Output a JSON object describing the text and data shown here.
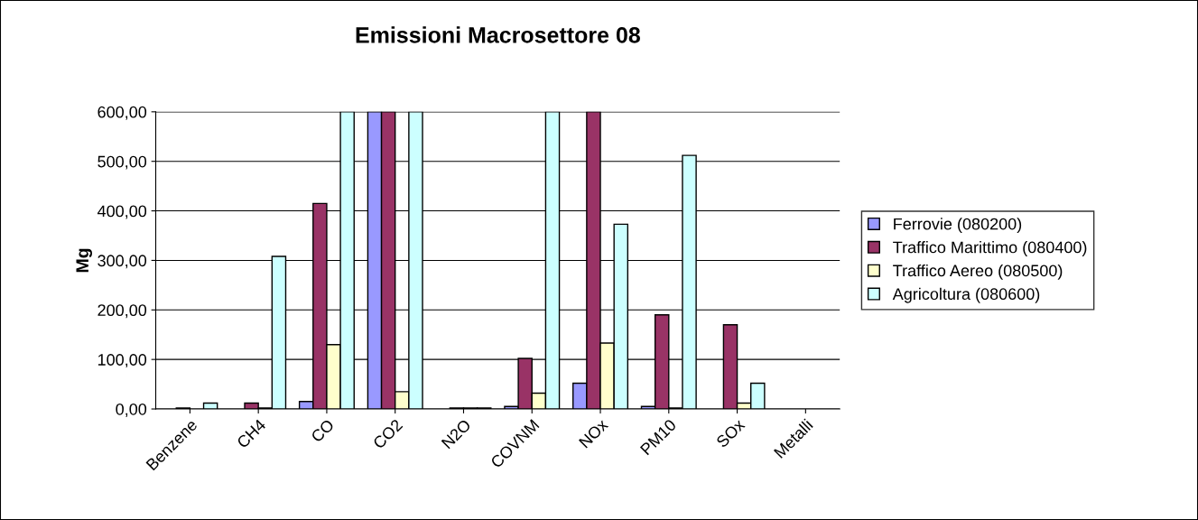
{
  "chart_data": {
    "type": "bar",
    "title": "Emissioni Macrosettore 08",
    "ylabel": "Mg",
    "categories": [
      "Benzene",
      "CH4",
      "CO",
      "CO2",
      "N2O",
      "COVNM",
      "NOx",
      "PM10",
      "SOx",
      "Metalli"
    ],
    "series": [
      {
        "name": "Ferrovie (080200)",
        "color": "#9999ff",
        "values": [
          null,
          null,
          15,
          600,
          null,
          5,
          52,
          5,
          null,
          null
        ]
      },
      {
        "name": "Traffico Marittimo (080400)",
        "color": "#993366",
        "values": [
          2,
          12,
          415,
          600,
          2,
          102,
          600,
          190,
          170,
          null
        ]
      },
      {
        "name": "Traffico Aereo (080500)",
        "color": "#ffffcc",
        "values": [
          null,
          2,
          130,
          35,
          2,
          32,
          133,
          2,
          12,
          null
        ]
      },
      {
        "name": "Agricoltura (080600)",
        "color": "#ccffff",
        "values": [
          12,
          308,
          600,
          600,
          2,
          600,
          373,
          512,
          52,
          null
        ]
      }
    ],
    "ylim": [
      0,
      600
    ],
    "yticks": [
      {
        "value": 0,
        "label": "0,00"
      },
      {
        "value": 100,
        "label": "100,00"
      },
      {
        "value": 200,
        "label": "200,00"
      },
      {
        "value": 300,
        "label": "300,00"
      },
      {
        "value": 400,
        "label": "400,00"
      },
      {
        "value": 500,
        "label": "500,00"
      },
      {
        "value": 600,
        "label": "600,00"
      }
    ],
    "grid": "y",
    "legend": "right"
  }
}
